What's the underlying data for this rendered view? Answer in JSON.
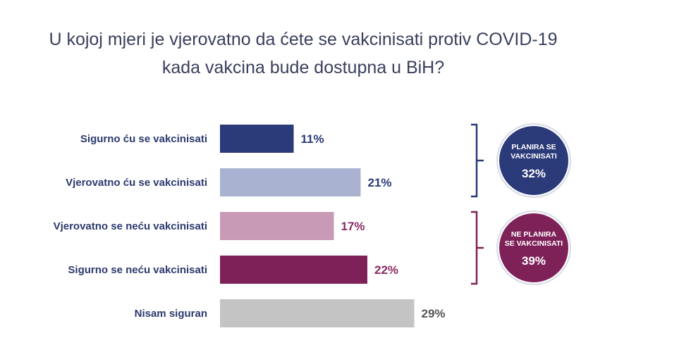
{
  "title": {
    "line1": "U kojoj mjeri je vjerovatno da ćete se vakcinisati protiv COVID-19",
    "line2": "kada vakcina bude dostupna u BiH?"
  },
  "chart_data": {
    "type": "bar",
    "orientation": "horizontal",
    "categories": [
      "Sigurno ću se vakcinisati",
      "Vjerovatno ću se vakcinisati",
      "Vjerovatno se neću vakcinisati",
      "Sigurno se neću vakcinisati",
      "Nisam siguran"
    ],
    "values": [
      11,
      21,
      17,
      22,
      29
    ],
    "value_labels": [
      "11%",
      "21%",
      "17%",
      "22%",
      "29%"
    ],
    "unit": "%",
    "colors": [
      "#2b3a78",
      "#a9b3d1",
      "#c99ab5",
      "#7f2159",
      "#c4c4c4"
    ],
    "label_colors": [
      "#2b3a78",
      "#2b3a78",
      "#8a2a63",
      "#8a2a63",
      "#555555"
    ],
    "xlim": [
      0,
      30
    ],
    "grid": false,
    "legend": "none"
  },
  "groups": [
    {
      "label_line1": "PLANIRA SE",
      "label_line2": "VAKCINISATI",
      "value": "32%",
      "color": "#2b3a78",
      "bracket_color": "#2b3a78",
      "bars": [
        0,
        1
      ]
    },
    {
      "label_line1": "NE PLANIRA",
      "label_line2": "SE VAKCINISATI",
      "value": "39%",
      "color": "#7f2159",
      "bracket_color": "#7f2159",
      "bars": [
        2,
        3
      ]
    }
  ]
}
